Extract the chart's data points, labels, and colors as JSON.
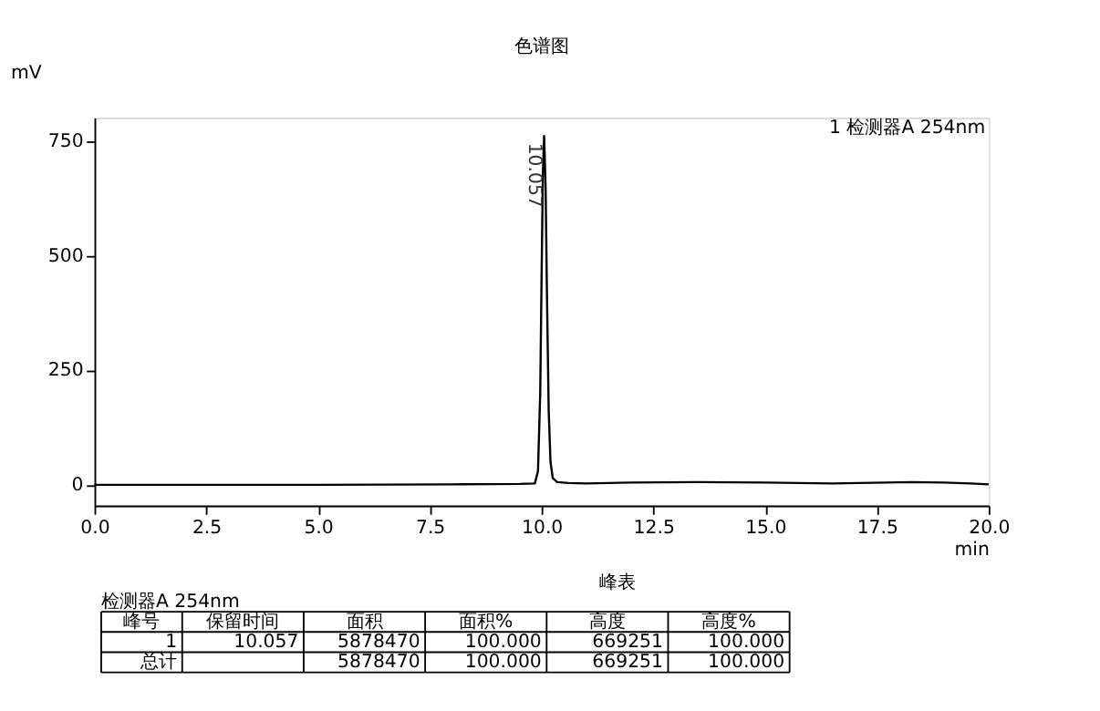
{
  "chart_data": [
    {
      "type": "line",
      "title": "色谱图",
      "xlabel": "min",
      "ylabel": "mV",
      "xlim": [
        0,
        20
      ],
      "ylim": [
        -45,
        800
      ],
      "xticks": [
        {
          "value": 0,
          "label": "0.0"
        },
        {
          "value": 2.5,
          "label": "2.5"
        },
        {
          "value": 5,
          "label": "5.0"
        },
        {
          "value": 7.5,
          "label": "7.5"
        },
        {
          "value": 10,
          "label": "10.0"
        },
        {
          "value": 12.5,
          "label": "12.5"
        },
        {
          "value": 15,
          "label": "15.0"
        },
        {
          "value": 17.5,
          "label": "17.5"
        },
        {
          "value": 20,
          "label": "20.0"
        }
      ],
      "yticks": [
        0,
        250,
        500,
        750
      ],
      "grid": false,
      "legend": "top right",
      "marker": "none",
      "line_style": "solid",
      "annotations": [
        {
          "text": "10.057",
          "x": 10.057,
          "y": 760
        }
      ],
      "series": [
        {
          "name": "1 检测器A 254nm",
          "color": "#000000",
          "x": [
            0,
            2,
            5,
            8,
            9.5,
            9.85,
            9.92,
            9.97,
            10.0,
            10.03,
            10.057,
            10.09,
            10.12,
            10.16,
            10.2,
            10.25,
            10.35,
            10.6,
            11,
            12,
            13.5,
            15,
            16.5,
            18.3,
            19,
            19.6,
            20
          ],
          "values": [
            0,
            0,
            0,
            1,
            2,
            3,
            30,
            200,
            450,
            680,
            760,
            650,
            420,
            160,
            50,
            15,
            6,
            4,
            3,
            5,
            6,
            5,
            3,
            6,
            5,
            3,
            1
          ]
        }
      ]
    },
    {
      "type": "other",
      "title": "峰表",
      "subtitle": "检测器A 254nm",
      "annotations": [
        "峰号",
        "保留时间",
        "面积",
        "面积%",
        "高度",
        "高度%",
        "1",
        "10.057",
        "5878470",
        "100.000",
        "669251",
        "100.000",
        "总计",
        null,
        "5878470",
        "100.000",
        "669251",
        "100.000"
      ]
    }
  ]
}
